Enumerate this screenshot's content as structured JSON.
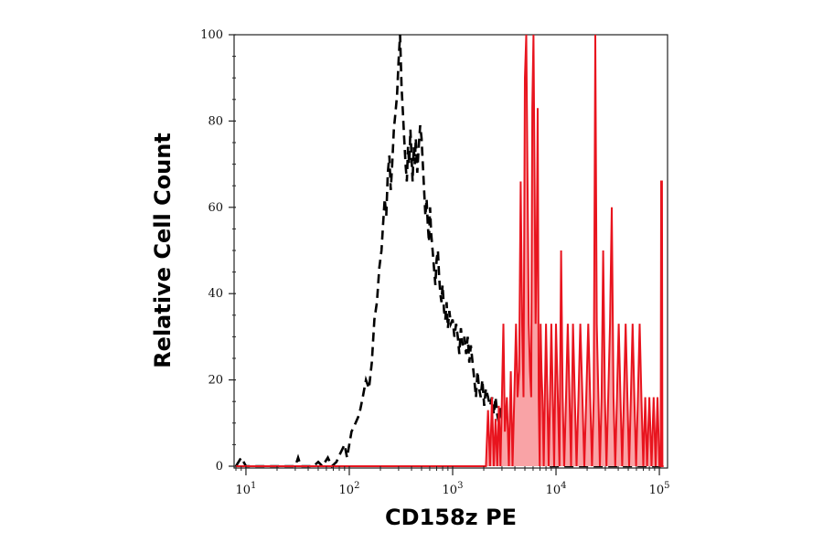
{
  "chart_data": {
    "type": "histogram",
    "xlabel": "CD158z PE",
    "ylabel": "Relative Cell Count",
    "x_scale": "log",
    "xlim": [
      8,
      120000
    ],
    "ylim": [
      0,
      100
    ],
    "y_ticks": [
      "0",
      "20",
      "40",
      "60",
      "80",
      "100"
    ],
    "x_ticks": [
      {
        "value": 10,
        "base": "10",
        "exp": "1"
      },
      {
        "value": 100,
        "base": "10",
        "exp": "2"
      },
      {
        "value": 1000,
        "base": "10",
        "exp": "3"
      },
      {
        "value": 10000,
        "base": "10",
        "exp": "4"
      },
      {
        "value": 100000,
        "base": "10",
        "exp": "5"
      }
    ],
    "grid": false,
    "series": [
      {
        "role": "isotype-control",
        "style": "dashed",
        "color": "#000000",
        "points": [
          [
            8,
            0
          ],
          [
            9,
            2
          ],
          [
            10,
            0
          ],
          [
            20,
            0
          ],
          [
            30,
            0
          ],
          [
            32,
            2
          ],
          [
            34,
            0
          ],
          [
            45,
            0
          ],
          [
            50,
            1
          ],
          [
            55,
            0
          ],
          [
            62,
            2
          ],
          [
            68,
            0
          ],
          [
            75,
            1
          ],
          [
            82,
            3
          ],
          [
            90,
            5
          ],
          [
            95,
            2
          ],
          [
            105,
            8
          ],
          [
            115,
            10
          ],
          [
            125,
            12
          ],
          [
            135,
            16
          ],
          [
            145,
            20
          ],
          [
            155,
            18
          ],
          [
            165,
            24
          ],
          [
            175,
            34
          ],
          [
            185,
            38
          ],
          [
            195,
            46
          ],
          [
            205,
            50
          ],
          [
            212,
            56
          ],
          [
            220,
            62
          ],
          [
            228,
            58
          ],
          [
            236,
            68
          ],
          [
            244,
            72
          ],
          [
            252,
            64
          ],
          [
            260,
            70
          ],
          [
            270,
            78
          ],
          [
            280,
            82
          ],
          [
            290,
            86
          ],
          [
            300,
            94
          ],
          [
            310,
            100
          ],
          [
            320,
            88
          ],
          [
            330,
            82
          ],
          [
            340,
            76
          ],
          [
            350,
            70
          ],
          [
            360,
            66
          ],
          [
            370,
            74
          ],
          [
            380,
            70
          ],
          [
            390,
            78
          ],
          [
            400,
            72
          ],
          [
            410,
            66
          ],
          [
            420,
            74
          ],
          [
            430,
            70
          ],
          [
            440,
            76
          ],
          [
            455,
            68
          ],
          [
            470,
            74
          ],
          [
            485,
            79
          ],
          [
            500,
            76
          ],
          [
            515,
            70
          ],
          [
            530,
            64
          ],
          [
            545,
            58
          ],
          [
            560,
            62
          ],
          [
            575,
            56
          ],
          [
            590,
            52
          ],
          [
            605,
            60
          ],
          [
            620,
            54
          ],
          [
            640,
            50
          ],
          [
            660,
            46
          ],
          [
            680,
            42
          ],
          [
            700,
            48
          ],
          [
            720,
            50
          ],
          [
            740,
            44
          ],
          [
            760,
            40
          ],
          [
            780,
            38
          ],
          [
            800,
            42
          ],
          [
            825,
            36
          ],
          [
            850,
            34
          ],
          [
            875,
            38
          ],
          [
            900,
            32
          ],
          [
            930,
            36
          ],
          [
            960,
            33
          ],
          [
            1000,
            34
          ],
          [
            1040,
            30
          ],
          [
            1080,
            33
          ],
          [
            1120,
            30
          ],
          [
            1160,
            26
          ],
          [
            1200,
            32
          ],
          [
            1250,
            28
          ],
          [
            1300,
            30
          ],
          [
            1350,
            26
          ],
          [
            1400,
            30
          ],
          [
            1450,
            24
          ],
          [
            1500,
            28
          ],
          [
            1560,
            24
          ],
          [
            1620,
            20
          ],
          [
            1680,
            16
          ],
          [
            1740,
            22
          ],
          [
            1800,
            18
          ],
          [
            1870,
            16
          ],
          [
            1940,
            20
          ],
          [
            2020,
            14
          ],
          [
            2100,
            18
          ],
          [
            2200,
            16
          ],
          [
            2300,
            14
          ],
          [
            2400,
            16
          ],
          [
            2500,
            12
          ],
          [
            2600,
            16
          ],
          [
            2700,
            12
          ],
          [
            2800,
            10
          ],
          [
            2900,
            14
          ],
          [
            3000,
            12
          ],
          [
            3150,
            8
          ],
          [
            3300,
            10
          ],
          [
            3450,
            6
          ],
          [
            3600,
            9
          ],
          [
            3800,
            6
          ],
          [
            4000,
            4
          ],
          [
            4200,
            6
          ],
          [
            4400,
            3
          ],
          [
            4600,
            5
          ],
          [
            4800,
            2
          ],
          [
            5000,
            3
          ],
          [
            5300,
            1
          ],
          [
            5600,
            2
          ],
          [
            6000,
            1
          ],
          [
            6500,
            0
          ],
          [
            7000,
            1
          ],
          [
            8000,
            0
          ],
          [
            10000,
            0
          ],
          [
            20000,
            0
          ],
          [
            50000,
            0
          ],
          [
            110000,
            0
          ]
        ]
      },
      {
        "role": "stained",
        "style": "filled",
        "color": "#e8141e",
        "fill": "#f9a3a6",
        "points": [
          [
            8,
            0
          ],
          [
            2100,
            0
          ],
          [
            2200,
            13
          ],
          [
            2300,
            0
          ],
          [
            2400,
            16
          ],
          [
            2500,
            0
          ],
          [
            2600,
            11
          ],
          [
            2700,
            0
          ],
          [
            2800,
            14
          ],
          [
            2900,
            0
          ],
          [
            3000,
            16
          ],
          [
            3100,
            33
          ],
          [
            3200,
            8
          ],
          [
            3350,
            16
          ],
          [
            3500,
            0
          ],
          [
            3650,
            22
          ],
          [
            3800,
            0
          ],
          [
            3950,
            16
          ],
          [
            4100,
            33
          ],
          [
            4250,
            16
          ],
          [
            4400,
            22
          ],
          [
            4550,
            66
          ],
          [
            4700,
            33
          ],
          [
            4850,
            16
          ],
          [
            5000,
            90
          ],
          [
            5150,
            100
          ],
          [
            5300,
            66
          ],
          [
            5450,
            33
          ],
          [
            5600,
            22
          ],
          [
            5750,
            16
          ],
          [
            5900,
            83
          ],
          [
            6050,
            100
          ],
          [
            6200,
            66
          ],
          [
            6350,
            33
          ],
          [
            6500,
            50
          ],
          [
            6650,
            83
          ],
          [
            6800,
            16
          ],
          [
            6950,
            0
          ],
          [
            7100,
            33
          ],
          [
            7250,
            22
          ],
          [
            7400,
            16
          ],
          [
            7600,
            0
          ],
          [
            7800,
            16
          ],
          [
            8000,
            33
          ],
          [
            8250,
            16
          ],
          [
            8500,
            0
          ],
          [
            8750,
            16
          ],
          [
            9000,
            33
          ],
          [
            9300,
            16
          ],
          [
            9600,
            0
          ],
          [
            10000,
            33
          ],
          [
            10400,
            16
          ],
          [
            10800,
            0
          ],
          [
            11200,
            50
          ],
          [
            11600,
            16
          ],
          [
            12000,
            0
          ],
          [
            12500,
            16
          ],
          [
            13000,
            33
          ],
          [
            13500,
            16
          ],
          [
            14000,
            0
          ],
          [
            14600,
            33
          ],
          [
            15200,
            16
          ],
          [
            15800,
            0
          ],
          [
            16500,
            16
          ],
          [
            17200,
            33
          ],
          [
            18000,
            16
          ],
          [
            18800,
            0
          ],
          [
            19600,
            16
          ],
          [
            20500,
            33
          ],
          [
            21400,
            16
          ],
          [
            22300,
            0
          ],
          [
            23200,
            16
          ],
          [
            24000,
            100
          ],
          [
            24800,
            33
          ],
          [
            25700,
            16
          ],
          [
            26600,
            0
          ],
          [
            27600,
            16
          ],
          [
            28600,
            50
          ],
          [
            29700,
            16
          ],
          [
            30800,
            0
          ],
          [
            32000,
            16
          ],
          [
            33300,
            33
          ],
          [
            34600,
            60
          ],
          [
            36000,
            16
          ],
          [
            37400,
            0
          ],
          [
            38900,
            16
          ],
          [
            40400,
            33
          ],
          [
            42000,
            16
          ],
          [
            43700,
            0
          ],
          [
            45400,
            16
          ],
          [
            47200,
            33
          ],
          [
            49100,
            16
          ],
          [
            51000,
            0
          ],
          [
            53000,
            16
          ],
          [
            55100,
            33
          ],
          [
            57300,
            16
          ],
          [
            59600,
            0
          ],
          [
            62000,
            16
          ],
          [
            64500,
            33
          ],
          [
            67000,
            16
          ],
          [
            70000,
            0
          ],
          [
            73000,
            16
          ],
          [
            76000,
            0
          ],
          [
            80000,
            16
          ],
          [
            84000,
            0
          ],
          [
            88000,
            16
          ],
          [
            92000,
            0
          ],
          [
            96000,
            16
          ],
          [
            100000,
            0
          ],
          [
            103000,
            0
          ],
          [
            104000,
            66
          ],
          [
            106000,
            66
          ],
          [
            107000,
            0
          ],
          [
            110000,
            0
          ]
        ]
      }
    ]
  }
}
